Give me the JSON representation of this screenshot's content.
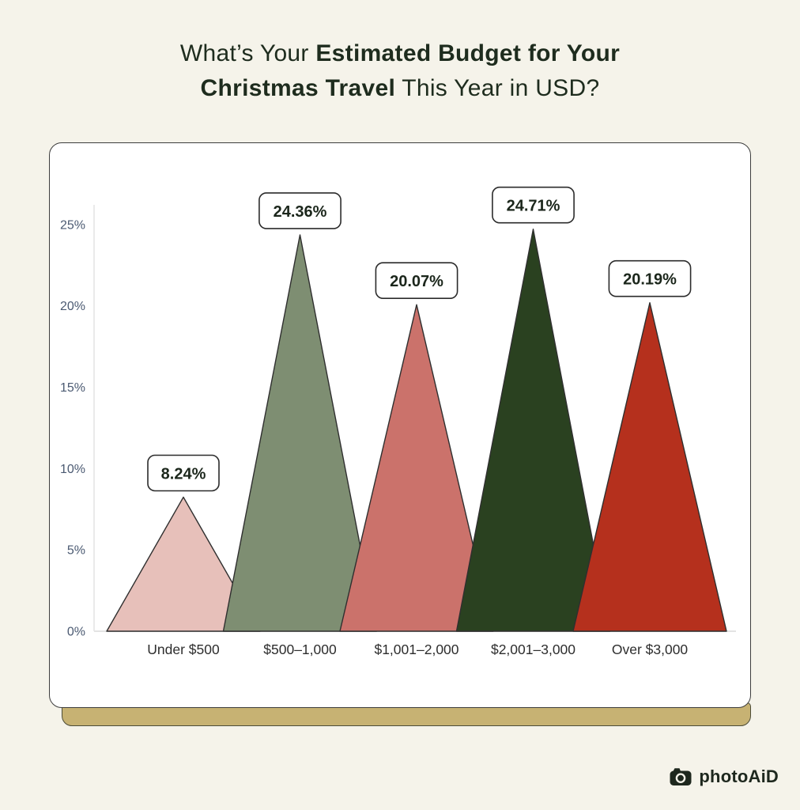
{
  "page": {
    "background": "#f5f3ea"
  },
  "title": {
    "regular1": "What’s Your ",
    "bold1": "Estimated Budget for Your",
    "bold2": "Christmas Travel",
    "regular2": " This Year in USD?"
  },
  "chart_data": {
    "type": "bar",
    "bar_shape": "triangle",
    "title": "What’s Your Estimated Budget for Your Christmas Travel This Year in USD?",
    "categories": [
      "Under $500",
      "$500–1,000",
      "$1,001–2,000",
      "$2,001–3,000",
      "Over $3,000"
    ],
    "values": [
      8.24,
      24.36,
      20.07,
      24.71,
      20.19
    ],
    "value_labels": [
      "8.24%",
      "24.36%",
      "20.07%",
      "24.71%",
      "20.19%"
    ],
    "bar_colors": [
      "#e7c0ba",
      "#7e8e72",
      "#cb726b",
      "#2a4120",
      "#b5301d"
    ],
    "xlabel": "",
    "ylabel": "",
    "ylim": [
      0,
      25
    ],
    "yticks": [
      "0%",
      "5%",
      "10%",
      "15%",
      "20%",
      "25%"
    ],
    "grid": false,
    "legend": "none"
  },
  "style_colors": {
    "axis_line": "#e3e3e3",
    "tick_text": "#4b5a72",
    "category_text": "#2d2d2d",
    "bar_stroke": "#2f2f2f",
    "label_box_fill": "#ffffff",
    "label_box_border": "#2b2b2b",
    "label_text": "#1b261b",
    "shelf": "#c7b273",
    "card_border": "#3d3d3d"
  },
  "footer": {
    "logo_text": "photoAiD"
  }
}
